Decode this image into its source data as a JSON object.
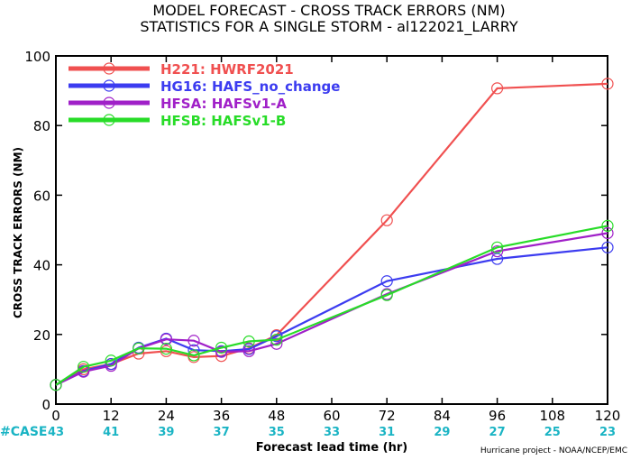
{
  "chart_data": {
    "type": "line",
    "title": "MODEL FORECAST - CROSS TRACK ERRORS (NM)",
    "subtitle": "STATISTICS FOR A SINGLE STORM - al122021_LARRY",
    "xlabel": "Forecast lead time (hr)",
    "ylabel": "CROSS TRACK ERRORS (NM)",
    "xlim": [
      0,
      120
    ],
    "ylim": [
      0,
      100
    ],
    "x_ticks": [
      0,
      12,
      24,
      36,
      48,
      60,
      72,
      84,
      96,
      108,
      120
    ],
    "y_ticks": [
      0,
      20,
      40,
      60,
      80,
      100
    ],
    "grid": false,
    "legend_position": "top-left",
    "cases_label": "#CASE",
    "cases": [
      43,
      41,
      39,
      37,
      35,
      33,
      31,
      29,
      27,
      25,
      23
    ],
    "credit": "Hurricane project - NOAA/NCEP/EMC",
    "x": [
      0,
      6,
      12,
      18,
      24,
      30,
      36,
      42,
      48,
      72,
      96,
      120
    ],
    "series": [
      {
        "name": "H221: HWRF2021",
        "color": "#f05050",
        "values": [
          5.5,
          10.0,
          11.5,
          14.5,
          15.2,
          13.5,
          13.8,
          16.0,
          19.8,
          52.8,
          90.7,
          92.0
        ]
      },
      {
        "name": "HG16: HAFS_no_change",
        "color": "#3c3cf0",
        "values": [
          5.5,
          9.5,
          11.5,
          16.2,
          18.8,
          15.5,
          15.2,
          15.8,
          19.5,
          35.3,
          41.7,
          45.0
        ]
      },
      {
        "name": "HFSA: HAFSv1-A",
        "color": "#a020c8",
        "values": [
          5.5,
          9.3,
          11.0,
          16.0,
          18.6,
          18.2,
          15.0,
          15.2,
          17.3,
          31.6,
          43.9,
          49.1
        ]
      },
      {
        "name": "HFSB: HAFSv1-B",
        "color": "#28dc28",
        "values": [
          5.5,
          10.7,
          12.5,
          16.0,
          15.9,
          14.0,
          16.2,
          18.0,
          18.5,
          31.3,
          45.0,
          51.2
        ]
      }
    ]
  }
}
